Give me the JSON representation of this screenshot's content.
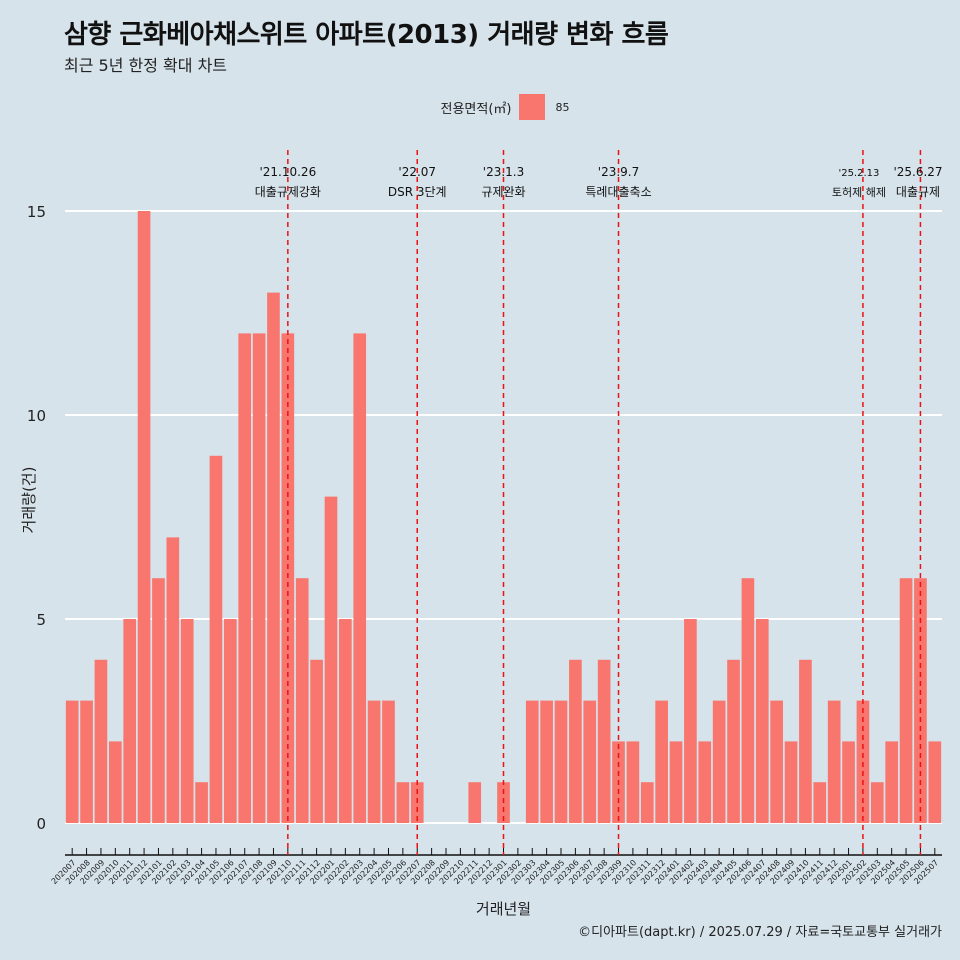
{
  "chart_data": {
    "type": "bar",
    "title": "삼향 근화베아채스위트 아파트(2013) 거래량 변화 흐름",
    "subtitle": "최근 5년 한정 확대 차트",
    "xlabel": "거래년월",
    "ylabel": "거래량(건)",
    "ylim": [
      0,
      16
    ],
    "yticks": [
      0,
      5,
      10,
      15
    ],
    "grid": true,
    "legend": {
      "title": "전용면적(㎡)",
      "entries": [
        "85"
      ],
      "placement": "top"
    },
    "series_color": "#f8766d",
    "categories": [
      "202007",
      "202008",
      "202009",
      "202010",
      "202011",
      "202012",
      "202101",
      "202102",
      "202103",
      "202104",
      "202105",
      "202106",
      "202107",
      "202108",
      "202109",
      "202110",
      "202111",
      "202112",
      "202201",
      "202202",
      "202203",
      "202204",
      "202205",
      "202206",
      "202207",
      "202208",
      "202209",
      "202210",
      "202211",
      "202212",
      "202301",
      "202302",
      "202303",
      "202304",
      "202305",
      "202306",
      "202307",
      "202308",
      "202309",
      "202310",
      "202311",
      "202312",
      "202401",
      "202402",
      "202403",
      "202404",
      "202405",
      "202406",
      "202407",
      "202408",
      "202409",
      "202410",
      "202411",
      "202412",
      "202501",
      "202502",
      "202503",
      "202504",
      "202505",
      "202506",
      "202507"
    ],
    "values": [
      3,
      3,
      4,
      2,
      5,
      15,
      6,
      7,
      5,
      1,
      9,
      5,
      12,
      12,
      13,
      12,
      6,
      4,
      8,
      5,
      12,
      3,
      3,
      1,
      1,
      0,
      0,
      0,
      1,
      0,
      1,
      0,
      3,
      3,
      3,
      4,
      3,
      4,
      2,
      2,
      1,
      3,
      2,
      5,
      2,
      3,
      4,
      6,
      5,
      3,
      2,
      4,
      1,
      3,
      2,
      3,
      1,
      2,
      6,
      6,
      2
    ],
    "events": [
      {
        "date": "'21.10.26",
        "label": "대출규제강화",
        "at": "202110"
      },
      {
        "date": "'22.07",
        "label": "DSR 3단계",
        "at": "202207"
      },
      {
        "date": "'23.1.3",
        "label": "규제완화",
        "at": "202301"
      },
      {
        "date": "'23.9.7",
        "label": "특례대출축소",
        "at": "202309"
      },
      {
        "date": "'25.2.13",
        "label": "토허제 해제",
        "at": "202502"
      },
      {
        "date": "'25.6.27",
        "label": "대출규제",
        "at": "202506"
      }
    ],
    "event_line_color": "#ee1111"
  },
  "caption": "©디아파트(dapt.kr) / 2025.07.29 / 자료=국토교통부 실거래가"
}
